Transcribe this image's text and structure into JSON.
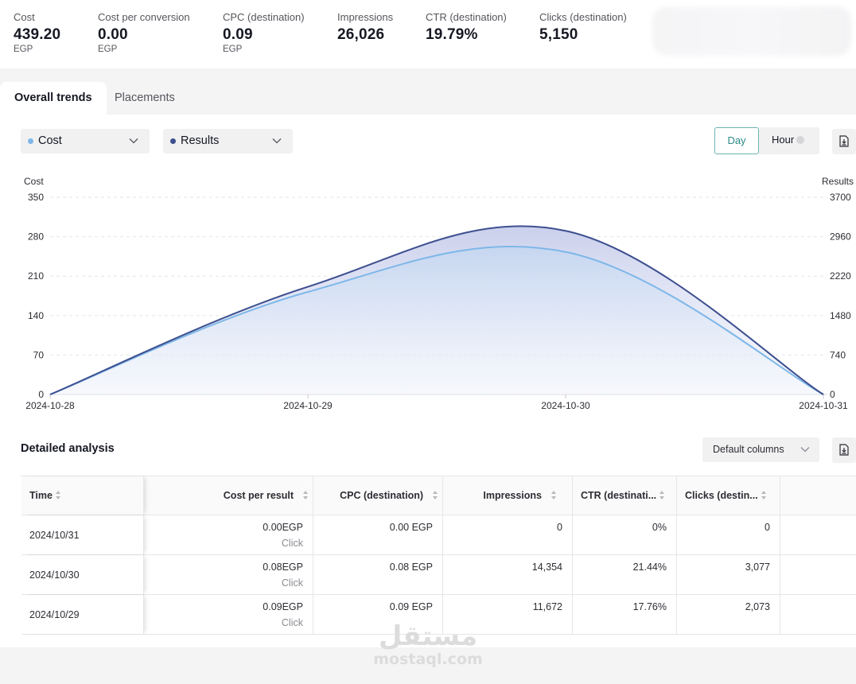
{
  "metrics": [
    {
      "label": "Cost",
      "value": "439.20",
      "unit": "EGP"
    },
    {
      "label": "Cost per conversion",
      "value": "0.00",
      "unit": "EGP"
    },
    {
      "label": "CPC (destination)",
      "value": "0.09",
      "unit": "EGP"
    },
    {
      "label": "Impressions",
      "value": "26,026",
      "unit": ""
    },
    {
      "label": "CTR (destination)",
      "value": "19.79%",
      "unit": ""
    },
    {
      "label": "Clicks (destination)",
      "value": "5,150",
      "unit": ""
    }
  ],
  "tabs": [
    {
      "label": "Overall trends",
      "active": true
    },
    {
      "label": "Placements",
      "active": false
    }
  ],
  "filters": {
    "metric1": {
      "label": "Cost",
      "dot_color": "#7db7e8"
    },
    "metric2": {
      "label": "Results",
      "dot_color": "#3d4f8f"
    }
  },
  "granularity": {
    "day": "Day",
    "hour": "Hour",
    "selected": "Day"
  },
  "chart_data": {
    "type": "area",
    "x": [
      "2024-10-28",
      "2024-10-29",
      "2024-10-30",
      "2024-10-31"
    ],
    "left_axis": {
      "label": "Cost",
      "ticks": [
        "0",
        "70",
        "140",
        "210",
        "280",
        "350"
      ],
      "ylim": [
        0,
        350
      ]
    },
    "right_axis": {
      "label": "Results",
      "ticks": [
        "0",
        "740",
        "1480",
        "2220",
        "2960",
        "3700"
      ],
      "ylim": [
        0,
        3700
      ]
    },
    "series": [
      {
        "name": "Cost",
        "axis": "left",
        "color": "#7db7e8",
        "values": [
          0,
          182,
          253,
          0
        ]
      },
      {
        "name": "Results",
        "axis": "right",
        "color": "#3d4f8f",
        "values": [
          0,
          2020,
          3070,
          0
        ]
      }
    ],
    "grid": true
  },
  "analysis": {
    "title": "Detailed analysis",
    "columns_select": "Default columns",
    "headers": [
      "Time",
      "Cost per result",
      "CPC (destination)",
      "Impressions",
      "CTR (destinati...",
      "Clicks (destin..."
    ],
    "rows": [
      {
        "time": "2024/10/31",
        "cost_per_result": "0.00EGP",
        "result_type": "Click",
        "cpc": "0.00 EGP",
        "impressions": "0",
        "ctr": "0%",
        "clicks": "0"
      },
      {
        "time": "2024/10/30",
        "cost_per_result": "0.08EGP",
        "result_type": "Click",
        "cpc": "0.08 EGP",
        "impressions": "14,354",
        "ctr": "21.44%",
        "clicks": "3,077"
      },
      {
        "time": "2024/10/29",
        "cost_per_result": "0.09EGP",
        "result_type": "Click",
        "cpc": "0.09 EGP",
        "impressions": "11,672",
        "ctr": "17.76%",
        "clicks": "2,073"
      }
    ]
  },
  "watermark": {
    "arabic": "مستقل",
    "latin": "mostaql.com"
  }
}
